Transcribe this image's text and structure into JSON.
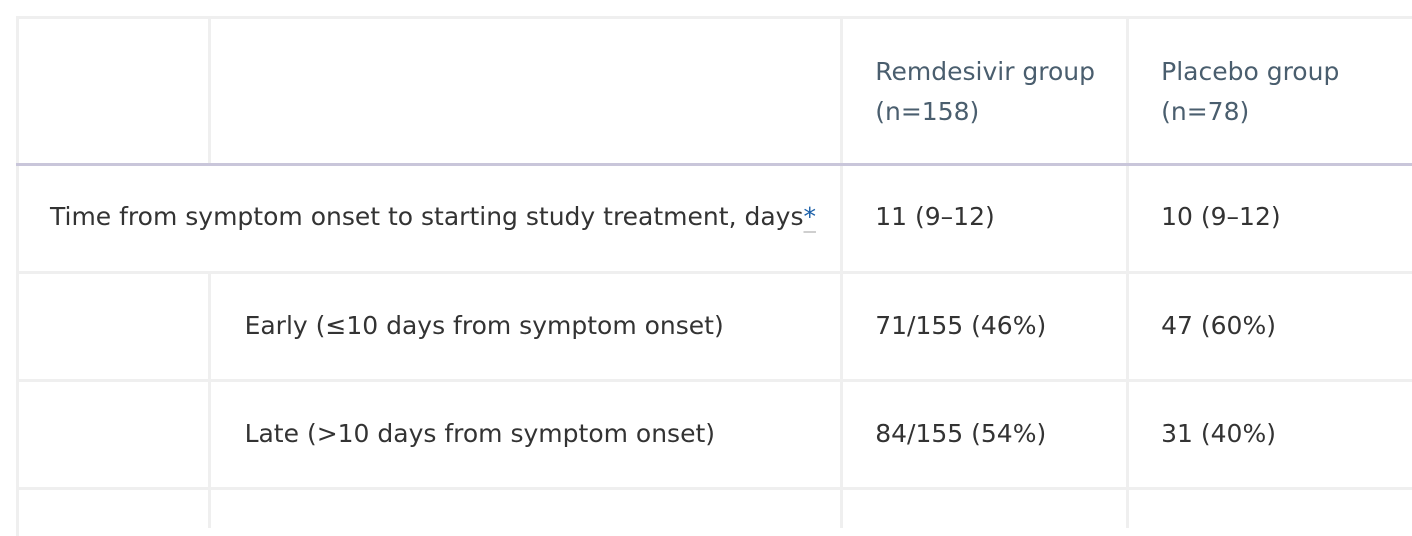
{
  "table": {
    "columns": [
      "",
      "",
      "Remdesivir group (n=158)",
      "Placebo group (n=78)"
    ],
    "header": {
      "remdesivir_line1": "Remdesivir group",
      "remdesivir_line2": "(n=158)",
      "placebo_line1": "Placebo group",
      "placebo_line2": "(n=78)"
    },
    "rows": [
      {
        "label": "Time from symptom onset to starting study treatment, days",
        "footnote": "*",
        "remdesivir": "11 (9–12)",
        "placebo": "10 (9–12)"
      },
      {
        "label": "Early (≤10 days from symptom onset)",
        "remdesivir": "71/155 (46%)",
        "placebo": "47 (60%)"
      },
      {
        "label": "Late (>10 days from symptom onset)",
        "remdesivir": "84/155 (54%)",
        "placebo": "31 (40%)"
      }
    ]
  },
  "colors": {
    "header_text": "#4a5e6e",
    "body_text": "#333333",
    "footnote_link": "#1a5fa8",
    "header_rule": "#c9c6da",
    "cell_border": "#efefef"
  }
}
